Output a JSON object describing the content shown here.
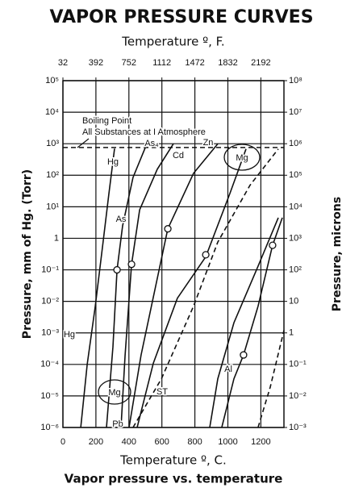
{
  "chart_data": {
    "type": "line",
    "title": "VAPOR PRESSURE CURVES",
    "x2_label": "Temperature º, F.",
    "x_label": "Temperature º, C.",
    "y_label": "Pressure, mm of Hg. (Torr)",
    "y2_label": "Pressure, microns",
    "caption": "Vapor pressure vs. temperature",
    "log_y": true,
    "grid": true,
    "xlim": [
      0,
      1340
    ],
    "xticks": [
      0,
      200,
      400,
      600,
      800,
      1000,
      1200
    ],
    "x2lim": [
      32,
      2444
    ],
    "x2ticks": [
      32,
      392,
      752,
      1112,
      1472,
      1832,
      2192
    ],
    "ylim": [
      1e-06,
      100000
    ],
    "yticks": [
      {
        "value": 100000,
        "label": "10⁵"
      },
      {
        "value": 10000,
        "label": "10⁴"
      },
      {
        "value": 1000,
        "label": "10³"
      },
      {
        "value": 100,
        "label": "10²"
      },
      {
        "value": 10,
        "label": "10¹"
      },
      1,
      {
        "value": 0.1,
        "label": "10⁻¹"
      },
      {
        "value": 0.01,
        "label": "10⁻²"
      },
      {
        "value": 0.001,
        "label": "10⁻³"
      },
      {
        "value": 0.0001,
        "label": "10⁻⁴"
      },
      {
        "value": 1e-05,
        "label": "10⁻⁵"
      },
      {
        "value": 1e-06,
        "label": "10⁻⁶"
      }
    ],
    "y2lim": [
      0.001,
      100000000
    ],
    "y2ticks": [
      {
        "value": 100000000,
        "label": "10⁸"
      },
      {
        "value": 10000000,
        "label": "10⁷"
      },
      {
        "value": 1000000,
        "label": "10⁶"
      },
      {
        "value": 100000,
        "label": "10⁵"
      },
      {
        "value": 10000,
        "label": "10⁴"
      },
      {
        "value": 1000,
        "label": "10³"
      },
      {
        "value": 100,
        "label": "10²"
      },
      10,
      1,
      {
        "value": 0.1,
        "label": "10⁻¹"
      },
      {
        "value": 0.01,
        "label": "10⁻²"
      },
      {
        "value": 0.001,
        "label": "10⁻³"
      }
    ],
    "reference_line": {
      "value": 760,
      "dashed": true
    },
    "color": "#111111",
    "series": [
      {
        "x": [
          108,
          147,
          196,
          244,
          279,
          313
        ],
        "values": [
          1e-06,
          0.0001,
          0.007,
          0.8,
          26,
          700
        ],
        "dashed": false
      },
      {
        "x": [
          264,
          303,
          328,
          362,
          425,
          509
        ],
        "values": [
          1e-06,
          0.00036,
          0.1,
          2.5,
          85,
          1000
        ],
        "dashed": false
      },
      {
        "x": [
          352,
          377,
          416,
          465,
          572,
          670
        ],
        "values": [
          1e-06,
          0.0002,
          0.15,
          8,
          155,
          1000
        ],
        "dashed": false
      },
      {
        "x": [
          401,
          474,
          636,
          792,
          939
        ],
        "values": [
          1e-06,
          0.0002,
          2,
          115,
          1000
        ],
        "dashed": false
      },
      {
        "x": [
          450,
          548,
          694,
          866,
          1012,
          1110
        ],
        "values": [
          1e-06,
          0.00011,
          0.0126,
          0.26,
          26,
          680
        ],
        "dashed": false
      },
      {
        "x": [
          425,
          597,
          792,
          939,
          1134,
          1306
        ],
        "values": [
          1e-06,
          3.5e-05,
          0.007,
          0.76,
          48,
          680
        ],
        "dashed": true
      },
      {
        "x": [
          890,
          939,
          1037,
          1183,
          1306
        ],
        "values": [
          1e-06,
          3.5e-05,
          0.0021,
          0.13,
          4.5
        ],
        "dashed": false
      },
      {
        "x": [
          963,
          1037,
          1095,
          1183,
          1271,
          1330
        ],
        "values": [
          1e-06,
          3.5e-05,
          0.0002,
          0.007,
          0.6,
          4.5
        ],
        "dashed": false
      },
      {
        "x": [
          1183,
          1257,
          1340
        ],
        "values": [
          1e-06,
          1.9e-05,
          0.0012
        ],
        "dashed": true
      }
    ],
    "markers": {
      "x": [
        328,
        416,
        636,
        866,
        1271,
        1095
      ],
      "values": [
        0.1,
        0.15,
        2,
        0.3,
        0.6,
        0.0002
      ]
    },
    "annotations": [
      "Boiling Point",
      "All Substances at I Atmosphere",
      "As₄",
      "Zn",
      "Hg",
      "Cd",
      "Mg",
      "As",
      "Hg",
      "Mg",
      "ST",
      "Pb",
      "Al"
    ]
  }
}
